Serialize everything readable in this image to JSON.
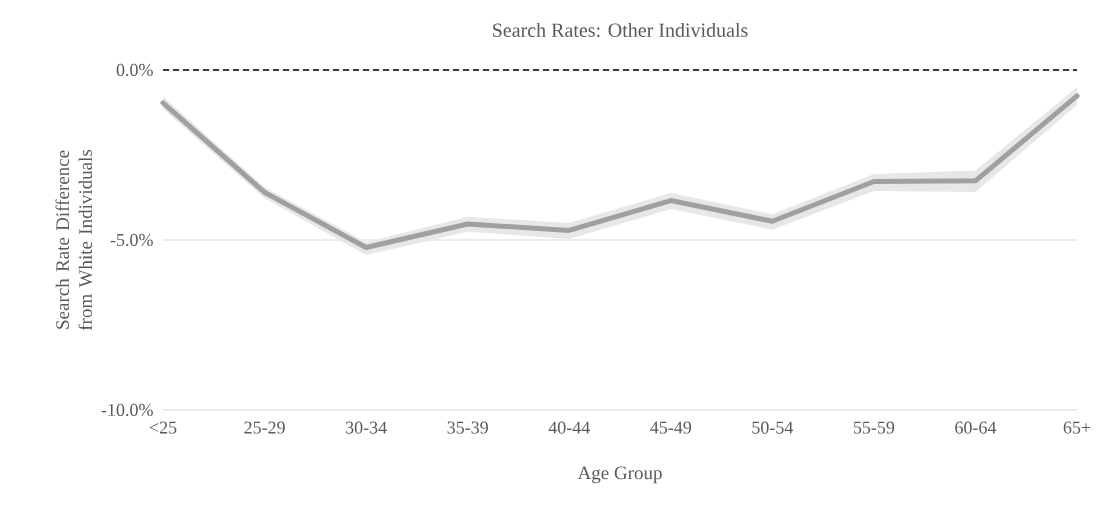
{
  "chart_data": {
    "type": "line",
    "title": "Search Rates: Other Individuals",
    "xlabel": "Age Group",
    "ylabel": "Search Rate Difference from White Individuals",
    "categories": [
      "<25",
      "25-29",
      "30-34",
      "35-39",
      "40-44",
      "45-49",
      "50-54",
      "55-59",
      "60-64",
      "65+"
    ],
    "series": [
      {
        "color": "#a0a0a0",
        "values": [
          -0.97,
          -3.6,
          -5.22,
          -4.53,
          -4.72,
          -3.84,
          -4.45,
          -3.28,
          -3.26,
          -0.76
        ],
        "lower": [
          -1.15,
          -3.77,
          -5.44,
          -4.76,
          -4.97,
          -4.09,
          -4.7,
          -3.56,
          -3.59,
          -1.03
        ],
        "upper": [
          -0.78,
          -3.45,
          -5.06,
          -4.32,
          -4.5,
          -3.62,
          -4.24,
          -3.06,
          -2.96,
          -0.51
        ]
      }
    ],
    "ylim": [
      -10,
      0
    ],
    "yticks": [
      {
        "value": -10,
        "label": "-10.0%"
      },
      {
        "value": -5,
        "label": "-5.0%"
      },
      {
        "value": 0,
        "label": "0.0%"
      }
    ],
    "ref_lines": [
      {
        "axis": "y",
        "value": 0,
        "color": "#000000",
        "line_style": "dashed"
      }
    ],
    "grid": "y"
  }
}
